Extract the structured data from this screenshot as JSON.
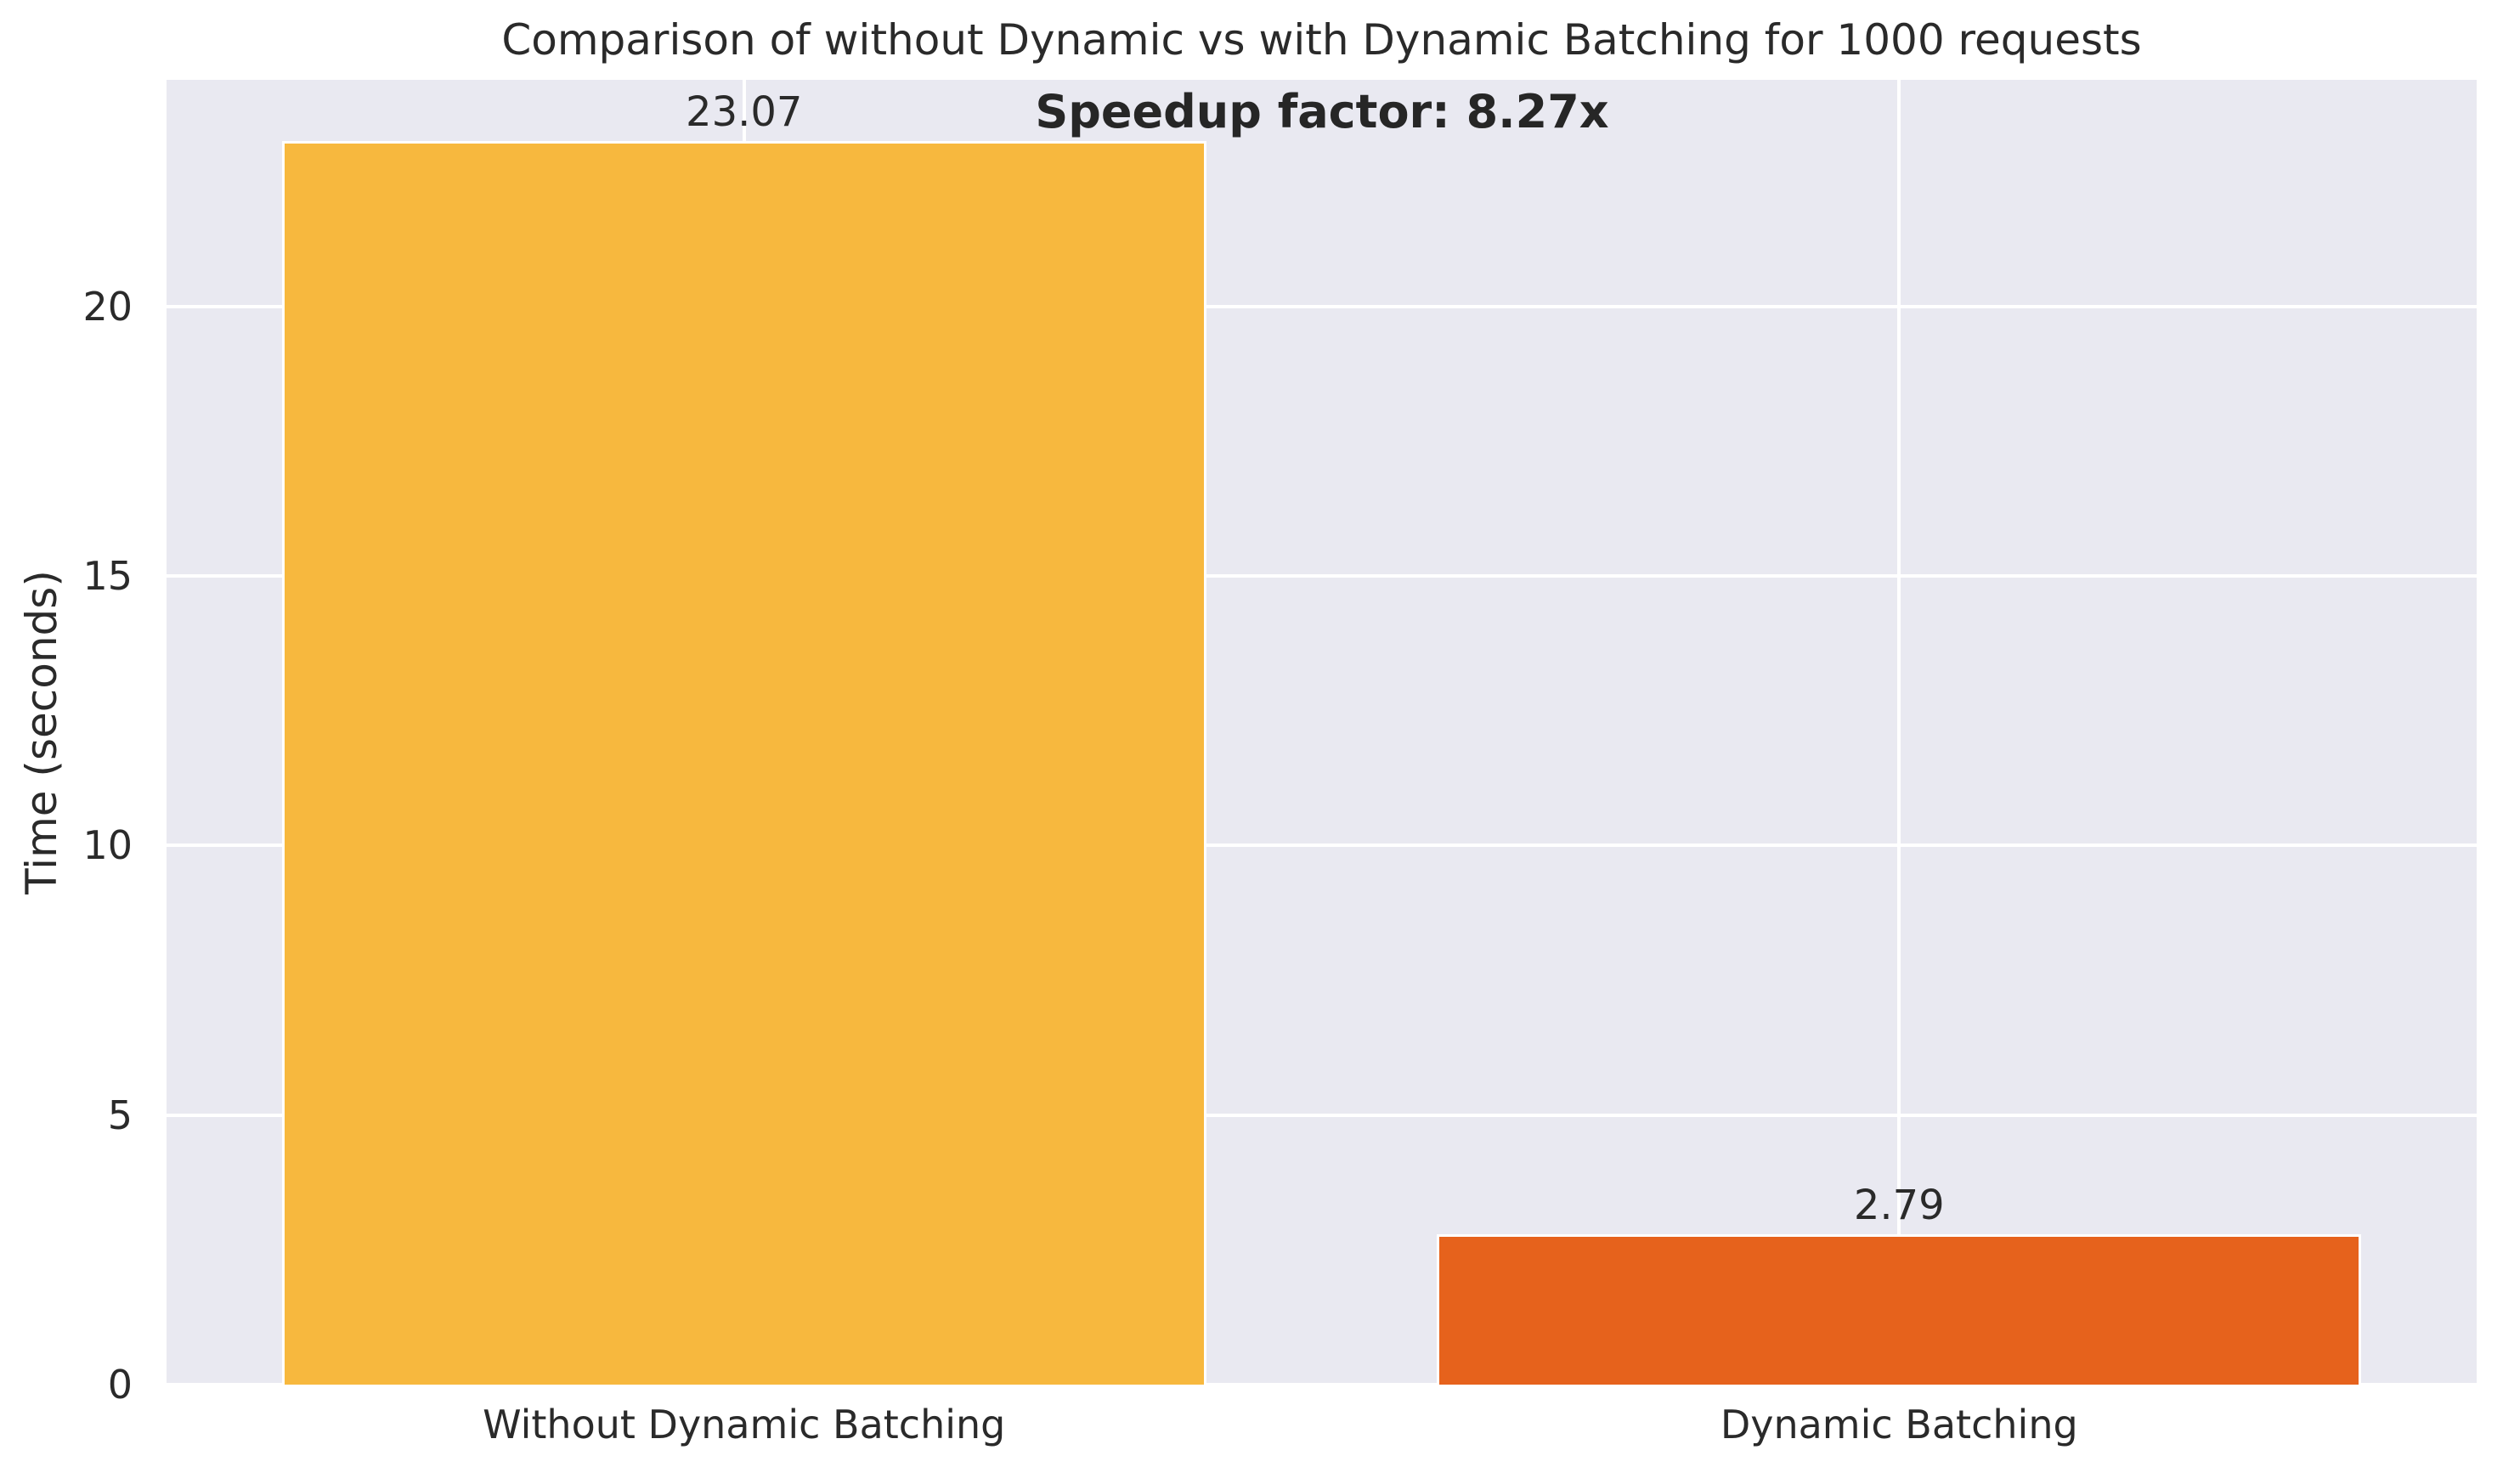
{
  "chart_data": {
    "type": "bar",
    "title": "Comparison of without Dynamic vs with Dynamic Batching for 1000 requests",
    "ylabel": "Time (seconds)",
    "xlabel": "",
    "categories": [
      "Without Dynamic Batching",
      "Dynamic Batching"
    ],
    "values": [
      23.07,
      2.79
    ],
    "value_labels": [
      "23.07",
      "2.79"
    ],
    "bar_colors": [
      "#f7b83e",
      "#e6621c"
    ],
    "annotation": "Speedup factor: 8.27x",
    "yticks": [
      0,
      5,
      10,
      15,
      20
    ],
    "ylim": [
      0,
      24.2
    ],
    "xlim_units": 2,
    "bar_width_fraction": 0.4,
    "grid": true,
    "legend": false,
    "colors": {
      "plot_background": "#e9e9f1",
      "grid_color": "#ffffff",
      "text_color": "#2a2a2a",
      "figure_background": "#ffffff",
      "bar_edge_color": "#ffffff"
    }
  }
}
